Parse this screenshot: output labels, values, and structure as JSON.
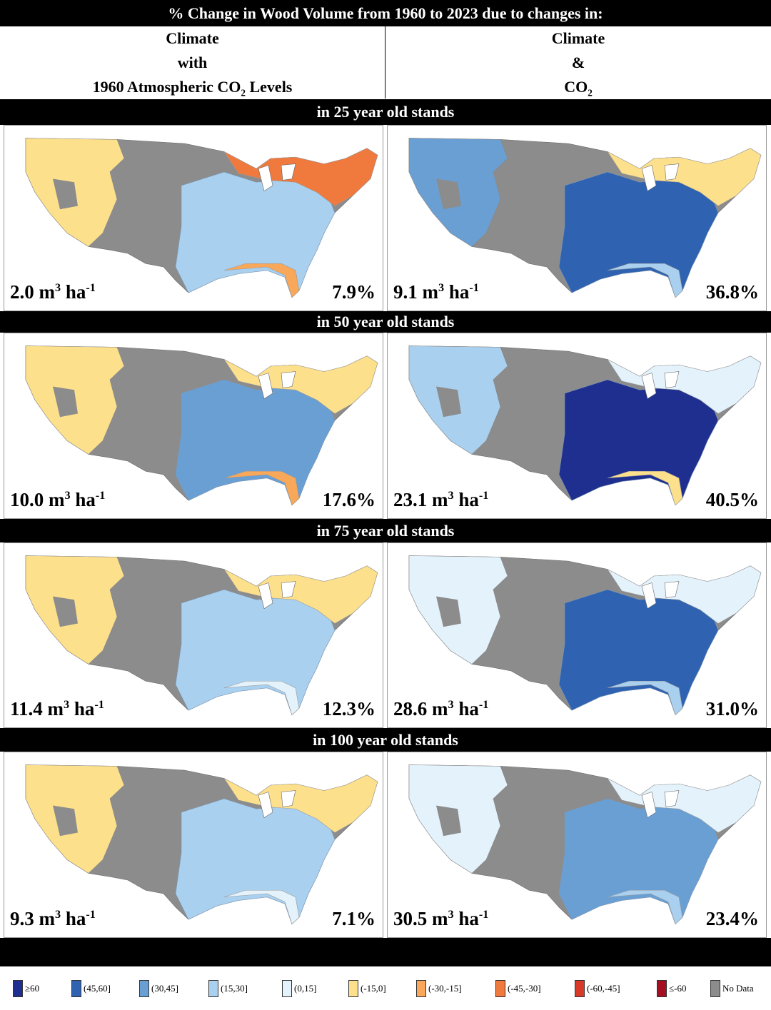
{
  "title": "% Change in Wood Volume from 1960 to 2023 due to changes in:",
  "columns": {
    "left": {
      "line1": "Climate",
      "line2": "with",
      "line3a": "1960 Atmospheric CO",
      "line3sub": "2",
      "line3b": " Levels"
    },
    "right": {
      "line1": "Climate",
      "line2": "&",
      "line3a": "CO",
      "line3sub": "2"
    }
  },
  "rows": [
    {
      "label": "in 25 year old stands",
      "left": {
        "value": "2.0 m",
        "unit_sup": "3",
        "unit_mid": " ha",
        "unit_sup2": "-1",
        "pct": "7.9%"
      },
      "right": {
        "value": "9.1 m",
        "unit_sup": "3",
        "unit_mid": " ha",
        "unit_sup2": "-1",
        "pct": "36.8%"
      }
    },
    {
      "label": "in 50 year old stands",
      "left": {
        "value": "10.0 m",
        "unit_sup": "3",
        "unit_mid": " ha",
        "unit_sup2": "-1",
        "pct": "17.6%"
      },
      "right": {
        "value": "23.1 m",
        "unit_sup": "3",
        "unit_mid": " ha",
        "unit_sup2": "-1",
        "pct": "40.5%"
      }
    },
    {
      "label": "in 75 year old stands",
      "left": {
        "value": "11.4 m",
        "unit_sup": "3",
        "unit_mid": " ha",
        "unit_sup2": "-1",
        "pct": "12.3%"
      },
      "right": {
        "value": "28.6 m",
        "unit_sup": "3",
        "unit_mid": " ha",
        "unit_sup2": "-1",
        "pct": "31.0%"
      }
    },
    {
      "label": "in 100 year old stands",
      "left": {
        "value": "9.3 m",
        "unit_sup": "3",
        "unit_mid": " ha",
        "unit_sup2": "-1",
        "pct": "7.1%"
      },
      "right": {
        "value": "30.5 m",
        "unit_sup": "3",
        "unit_mid": " ha",
        "unit_sup2": "-1",
        "pct": "23.4%"
      }
    }
  ],
  "legend": [
    {
      "label": "≥60",
      "color": "#1f2f8f"
    },
    {
      "label": "(45,60]",
      "color": "#2f62b0"
    },
    {
      "label": "(30,45]",
      "color": "#6a9fd4"
    },
    {
      "label": "(15,30]",
      "color": "#a9d0ee"
    },
    {
      "label": "(0,15]",
      "color": "#e4f2fb"
    },
    {
      "label": "(-15,0]",
      "color": "#fde08c"
    },
    {
      "label": "(-30,-15]",
      "color": "#f9a85a"
    },
    {
      "label": "(-45,-30]",
      "color": "#f07a3e"
    },
    {
      "label": "(-60,-45]",
      "color": "#d93a27"
    },
    {
      "label": "≤-60",
      "color": "#a50f24"
    },
    {
      "label": "No Data",
      "color": "#8c8c8c"
    }
  ],
  "map_colors": {
    "nodata": "#8c8c8c",
    "r25_left": {
      "west": "#fde08c",
      "east": "#a9d0ee",
      "ne": "#f07a3e",
      "se": "#f9a85a"
    },
    "r25_right": {
      "west": "#6a9fd4",
      "east": "#2f62b0",
      "ne": "#fde08c",
      "se": "#a9d0ee"
    },
    "r50_left": {
      "west": "#fde08c",
      "east": "#6a9fd4",
      "ne": "#fde08c",
      "se": "#f9a85a"
    },
    "r50_right": {
      "west": "#a9d0ee",
      "east": "#1f2f8f",
      "ne": "#e4f2fb",
      "se": "#fde08c"
    },
    "r75_left": {
      "west": "#fde08c",
      "east": "#a9d0ee",
      "ne": "#fde08c",
      "se": "#e4f2fb"
    },
    "r75_right": {
      "west": "#e4f2fb",
      "east": "#2f62b0",
      "ne": "#e4f2fb",
      "se": "#a9d0ee"
    },
    "r100_left": {
      "west": "#fde08c",
      "east": "#a9d0ee",
      "ne": "#fde08c",
      "se": "#e4f2fb"
    },
    "r100_right": {
      "west": "#e4f2fb",
      "east": "#6a9fd4",
      "ne": "#e4f2fb",
      "se": "#a9d0ee"
    }
  }
}
